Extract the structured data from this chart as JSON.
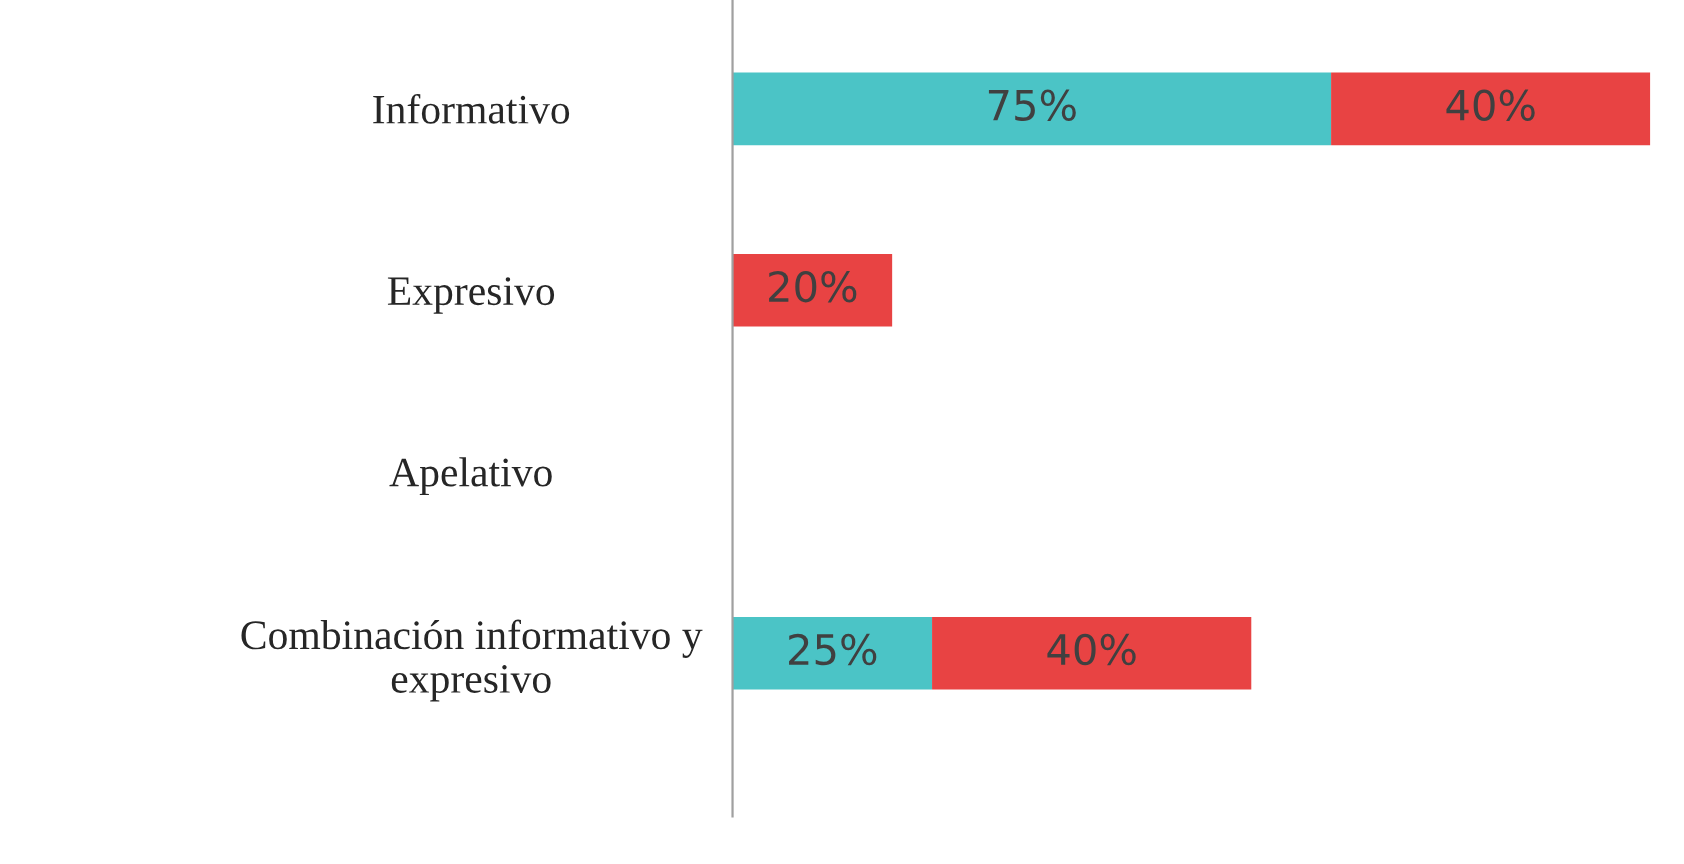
{
  "chart_data": {
    "type": "bar",
    "orientation": "horizontal",
    "stacked": true,
    "categories": [
      "Informativo",
      "Expresivo",
      "Apelativo",
      "Combinación informativo y\nexpresivo"
    ],
    "series": [
      {
        "color": "#4bc4c6",
        "values": [
          75,
          null,
          null,
          25
        ],
        "value_labels": [
          "75%",
          null,
          null,
          "25%"
        ]
      },
      {
        "color": "#e84343",
        "values": [
          40,
          20,
          null,
          40
        ],
        "value_labels": [
          "40%",
          "20%",
          null,
          "40%"
        ]
      }
    ],
    "grid": false,
    "legend": false,
    "tick_labels": "y"
  }
}
